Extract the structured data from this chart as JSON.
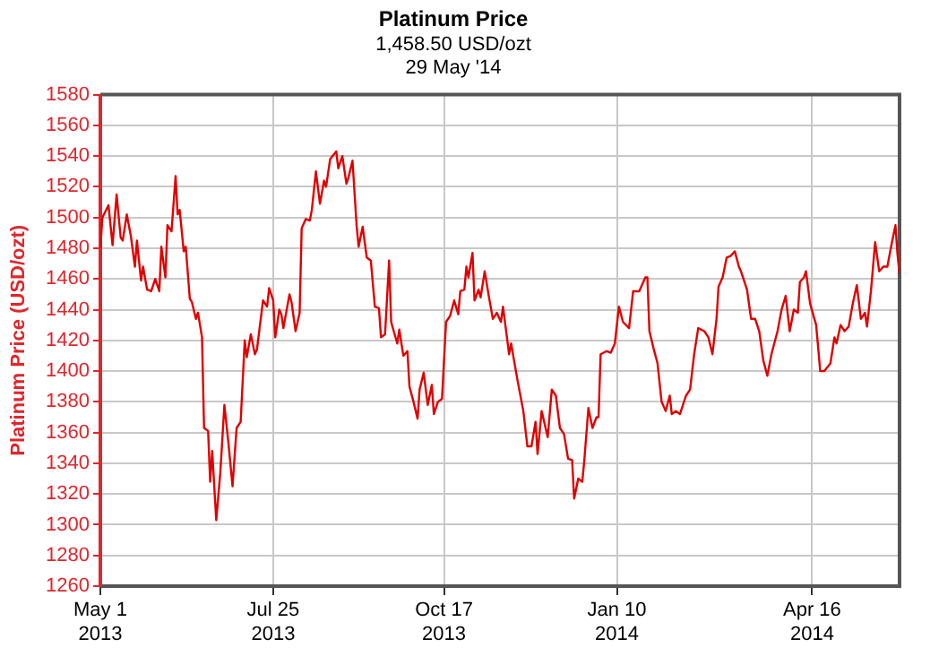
{
  "chart_data": {
    "type": "line",
    "title": "Platinum Price",
    "subtitle": "1,458.50 USD/ozt",
    "annotations": [
      "29 May '14"
    ],
    "ylabel": "Platinum Price (USD/ozt)",
    "x": [
      "2013-05-01",
      "2013-05-02",
      "2013-05-05",
      "2013-05-07",
      "2013-05-09",
      "2013-05-11",
      "2013-05-12",
      "2013-05-14",
      "2013-05-16",
      "2013-05-18",
      "2013-05-19",
      "2013-05-21",
      "2013-05-22",
      "2013-05-24",
      "2013-05-26",
      "2013-05-28",
      "2013-05-30",
      "2013-05-31",
      "2013-06-02",
      "2013-06-03",
      "2013-06-05",
      "2013-06-07",
      "2013-06-08",
      "2013-06-09",
      "2013-06-11",
      "2013-06-12",
      "2013-06-14",
      "2013-06-15",
      "2013-06-17",
      "2013-06-18",
      "2013-06-20",
      "2013-06-21",
      "2013-06-23",
      "2013-06-24",
      "2013-06-25",
      "2013-06-27",
      "2013-06-29",
      "2013-07-01",
      "2013-07-03",
      "2013-07-05",
      "2013-07-07",
      "2013-07-09",
      "2013-07-11",
      "2013-07-12",
      "2013-07-14",
      "2013-07-16",
      "2013-07-17",
      "2013-07-20",
      "2013-07-22",
      "2013-07-23",
      "2013-07-25",
      "2013-07-26",
      "2013-07-28",
      "2013-07-29",
      "2013-07-30",
      "2013-08-02",
      "2013-08-03",
      "2013-08-05",
      "2013-08-07",
      "2013-08-08",
      "2013-08-10",
      "2013-08-12",
      "2013-08-13",
      "2013-08-15",
      "2013-08-17",
      "2013-08-19",
      "2013-08-20",
      "2013-08-22",
      "2013-08-25",
      "2013-08-26",
      "2013-08-28",
      "2013-08-30",
      "2013-08-31",
      "2013-09-02",
      "2013-09-04",
      "2013-09-05",
      "2013-09-07",
      "2013-09-09",
      "2013-09-11",
      "2013-09-13",
      "2013-09-15",
      "2013-09-16",
      "2013-09-18",
      "2013-09-20",
      "2013-09-21",
      "2013-09-24",
      "2013-09-25",
      "2013-09-27",
      "2013-09-29",
      "2013-09-30",
      "2013-10-02",
      "2013-10-04",
      "2013-10-05",
      "2013-10-07",
      "2013-10-09",
      "2013-10-11",
      "2013-10-12",
      "2013-10-14",
      "2013-10-16",
      "2013-10-18",
      "2013-10-20",
      "2013-10-22",
      "2013-10-24",
      "2013-10-25",
      "2013-10-27",
      "2013-10-28",
      "2013-10-29",
      "2013-10-31",
      "2013-11-01",
      "2013-11-03",
      "2013-11-04",
      "2013-11-06",
      "2013-11-08",
      "2013-11-10",
      "2013-11-12",
      "2013-11-14",
      "2013-11-15",
      "2013-11-18",
      "2013-11-19",
      "2013-11-22",
      "2013-11-24",
      "2013-11-25",
      "2013-11-27",
      "2013-11-29",
      "2013-12-01",
      "2013-12-02",
      "2013-12-04",
      "2013-12-07",
      "2013-12-09",
      "2013-12-11",
      "2013-12-13",
      "2013-12-15",
      "2013-12-17",
      "2013-12-19",
      "2013-12-20",
      "2013-12-22",
      "2013-12-24",
      "2013-12-25",
      "2013-12-27",
      "2013-12-29",
      "2013-12-31",
      "2014-01-01",
      "2014-01-02",
      "2014-01-05",
      "2014-01-07",
      "2014-01-09",
      "2014-01-11",
      "2014-01-13",
      "2014-01-16",
      "2014-01-18",
      "2014-01-21",
      "2014-01-24",
      "2014-01-25",
      "2014-01-26",
      "2014-01-28",
      "2014-01-30",
      "2014-02-01",
      "2014-02-03",
      "2014-02-05",
      "2014-02-06",
      "2014-02-08",
      "2014-02-10",
      "2014-02-13",
      "2014-02-15",
      "2014-02-17",
      "2014-02-19",
      "2014-02-22",
      "2014-02-24",
      "2014-02-26",
      "2014-02-28",
      "2014-03-01",
      "2014-03-03",
      "2014-03-05",
      "2014-03-07",
      "2014-03-09",
      "2014-03-11",
      "2014-03-12",
      "2014-03-15",
      "2014-03-17",
      "2014-03-19",
      "2014-03-21",
      "2014-03-23",
      "2014-03-25",
      "2014-03-27",
      "2014-03-30",
      "2014-04-01",
      "2014-04-03",
      "2014-04-05",
      "2014-04-07",
      "2014-04-09",
      "2014-04-10",
      "2014-04-12",
      "2014-04-13",
      "2014-04-15",
      "2014-04-18",
      "2014-04-20",
      "2014-04-22",
      "2014-04-25",
      "2014-04-27",
      "2014-04-28",
      "2014-04-30",
      "2014-05-02",
      "2014-05-04",
      "2014-05-06",
      "2014-05-08",
      "2014-05-10",
      "2014-05-12",
      "2014-05-13",
      "2014-05-15",
      "2014-05-17",
      "2014-05-19",
      "2014-05-21",
      "2014-05-23",
      "2014-05-25",
      "2014-05-27",
      "2014-05-28",
      "2014-05-29"
    ],
    "series": [
      {
        "color": "#e00000",
        "values": [
          1480,
          1500,
          1508,
          1482,
          1515,
          1487,
          1485,
          1502,
          1488,
          1468,
          1485,
          1459,
          1468,
          1453,
          1452,
          1460,
          1452,
          1481,
          1461,
          1495,
          1491,
          1527,
          1502,
          1505,
          1478,
          1481,
          1447,
          1445,
          1434,
          1438,
          1422,
          1363,
          1361,
          1328,
          1348,
          1303,
          1334,
          1378,
          1353,
          1325,
          1363,
          1367,
          1420,
          1409,
          1424,
          1411,
          1414,
          1446,
          1442,
          1454,
          1446,
          1422,
          1440,
          1437,
          1428,
          1450,
          1445,
          1426,
          1438,
          1493,
          1499,
          1498,
          1505,
          1530,
          1509,
          1524,
          1520,
          1538,
          1543,
          1532,
          1540,
          1522,
          1526,
          1537,
          1495,
          1481,
          1494,
          1474,
          1472,
          1442,
          1441,
          1422,
          1424,
          1472,
          1432,
          1418,
          1427,
          1410,
          1413,
          1390,
          1380,
          1369,
          1388,
          1399,
          1378,
          1391,
          1372,
          1380,
          1382,
          1432,
          1436,
          1446,
          1437,
          1452,
          1453,
          1468,
          1461,
          1477,
          1446,
          1453,
          1448,
          1465,
          1449,
          1434,
          1438,
          1432,
          1442,
          1411,
          1418,
          1395,
          1381,
          1374,
          1351,
          1351,
          1367,
          1346,
          1374,
          1357,
          1388,
          1384,
          1363,
          1359,
          1343,
          1342,
          1317,
          1330,
          1328,
          1342,
          1376,
          1363,
          1370,
          1370,
          1411,
          1413,
          1412,
          1418,
          1442,
          1432,
          1428,
          1452,
          1452,
          1461,
          1461,
          1426,
          1415,
          1405,
          1380,
          1374,
          1384,
          1372,
          1374,
          1372,
          1384,
          1388,
          1411,
          1428,
          1426,
          1422,
          1411,
          1434,
          1455,
          1461,
          1474,
          1475,
          1478,
          1468,
          1465,
          1453,
          1434,
          1434,
          1426,
          1407,
          1397,
          1411,
          1426,
          1440,
          1449,
          1426,
          1440,
          1438,
          1458,
          1461,
          1465,
          1444,
          1430,
          1400,
          1400,
          1405,
          1422,
          1418,
          1430,
          1426,
          1429,
          1444,
          1456,
          1434,
          1438,
          1429,
          1453,
          1484,
          1465,
          1468,
          1468,
          1482,
          1495,
          1476,
          1463
        ]
      }
    ],
    "xlim": [
      "2013-05-01",
      "2014-05-29"
    ],
    "xticks": [
      {
        "value": "2013-05-01",
        "label": "May 1\n2013"
      },
      {
        "value": "2013-07-25",
        "label": "Jul 25\n2013"
      },
      {
        "value": "2013-10-17",
        "label": "Oct 17\n2013"
      },
      {
        "value": "2014-01-10",
        "label": "Jan 10\n2014"
      },
      {
        "value": "2014-04-16",
        "label": "Apr 16\n2014"
      }
    ],
    "ylim": [
      1260,
      1580
    ],
    "yticks": [
      1260,
      1280,
      1300,
      1320,
      1340,
      1360,
      1380,
      1400,
      1420,
      1440,
      1460,
      1480,
      1500,
      1520,
      1540,
      1560,
      1580
    ],
    "grid": true,
    "legend": false,
    "marker": "none"
  }
}
